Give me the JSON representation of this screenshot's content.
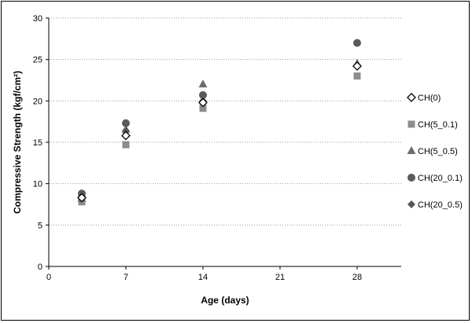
{
  "chart_data": {
    "type": "scatter",
    "xlabel": "Age (days)",
    "ylabel": "Compressive  Strength  (kgf/cm²)",
    "xlim": [
      0,
      28
    ],
    "ylim": [
      0,
      30
    ],
    "x_ticks": [
      0,
      7,
      14,
      21,
      28
    ],
    "y_ticks": [
      0,
      5,
      10,
      15,
      20,
      25,
      30
    ],
    "grid": "horizontal",
    "legend_position": "right",
    "series": [
      {
        "name": "CH(0)",
        "marker": "diamond-open",
        "color": "#000000",
        "x": [
          3,
          7,
          14,
          28
        ],
        "y": [
          8.3,
          15.8,
          19.8,
          24.2
        ]
      },
      {
        "name": "CH(5_0.1)",
        "marker": "square",
        "color": "#8c8c8c",
        "x": [
          3,
          7,
          14,
          28
        ],
        "y": [
          7.8,
          14.7,
          19.1,
          23.0
        ]
      },
      {
        "name": "CH(5_0.5)",
        "marker": "triangle",
        "color": "#6e6e6e",
        "x": [
          3,
          7,
          14,
          28
        ],
        "y": [
          8.2,
          16.5,
          22.0,
          24.5
        ]
      },
      {
        "name": "CH(20_0.1)",
        "marker": "circle",
        "color": "#5a5a5a",
        "x": [
          3,
          7,
          14,
          28
        ],
        "y": [
          8.8,
          17.3,
          20.7,
          27.0
        ]
      },
      {
        "name": "CH(20_0.5)",
        "marker": "diamond",
        "color": "#555555",
        "x": [
          3,
          7,
          14,
          28
        ],
        "y": [
          8.5,
          16.4,
          20.0,
          24.3
        ]
      }
    ]
  }
}
